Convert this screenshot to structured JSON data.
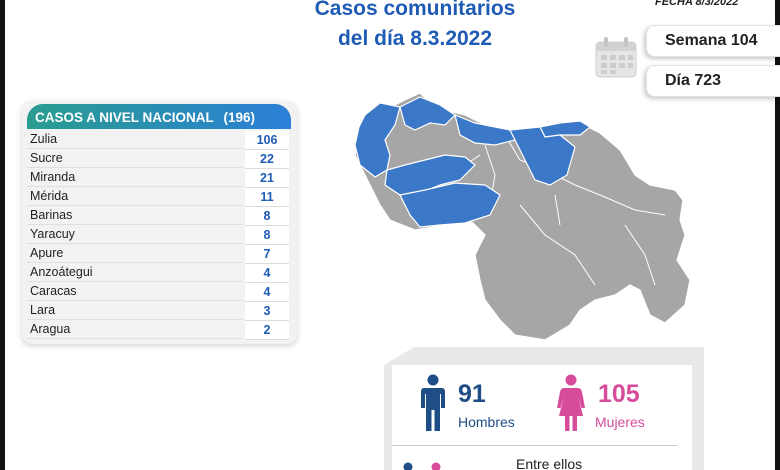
{
  "header": {
    "title_line1": "Casos comunitarios",
    "title_line2": "del día 8.3.2022",
    "fecha": "FECHA 8/3/2022",
    "semana": "Semana 104",
    "dia": "Día 723"
  },
  "table": {
    "heading": "CASOS A NIVEL NACIONAL",
    "total": "(196)",
    "rows": [
      {
        "name": "Zulia",
        "value": "106"
      },
      {
        "name": "Sucre",
        "value": "22"
      },
      {
        "name": "Miranda",
        "value": "21"
      },
      {
        "name": "Mérida",
        "value": "11"
      },
      {
        "name": "Barinas",
        "value": "8"
      },
      {
        "name": "Yaracuy",
        "value": "8"
      },
      {
        "name": "Apure",
        "value": "7"
      },
      {
        "name": "Anzoátegui",
        "value": "4"
      },
      {
        "name": "Caracas",
        "value": "4"
      },
      {
        "name": "Lara",
        "value": "3"
      },
      {
        "name": "Aragua",
        "value": "2"
      }
    ]
  },
  "stats": {
    "hombres_count": "91",
    "hombres_label": "Hombres",
    "mujeres_count": "105",
    "mujeres_label": "Mujeres",
    "entre_ellos": "Entre ellos"
  },
  "colors": {
    "title_blue": "#1f5bb5",
    "map_highlight": "#3b78c8",
    "map_base": "#a6a6a6",
    "male": "#1f4e86",
    "female": "#d64c9a",
    "table_head_start": "#2a9d8f",
    "table_head_end": "#2b7fd8"
  },
  "icons": {
    "calendar": "calendar-icon",
    "male": "male-person-icon",
    "female": "female-person-icon"
  }
}
